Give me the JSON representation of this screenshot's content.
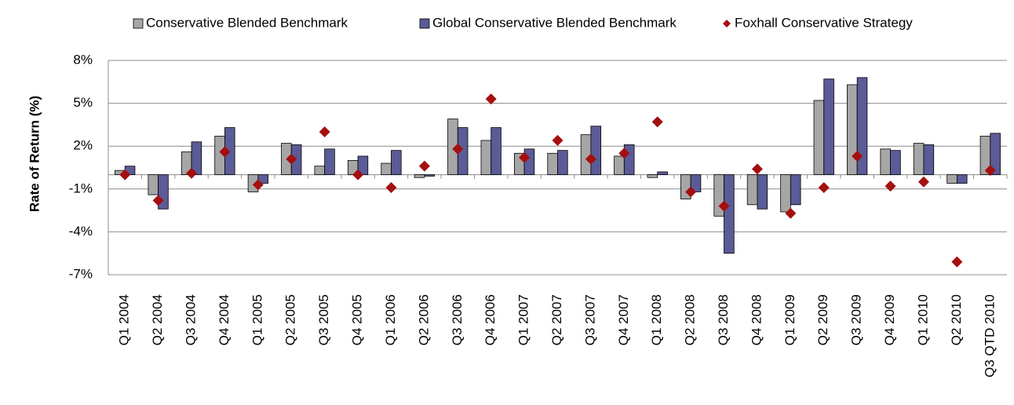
{
  "chart_data": {
    "type": "bar",
    "y_label": "Rate of Return (%)",
    "categories": [
      "Q1 2004",
      "Q2 2004",
      "Q3 2004",
      "Q4 2004",
      "Q1 2005",
      "Q2 2005",
      "Q3 2005",
      "Q4 2005",
      "Q1 2006",
      "Q2 2006",
      "Q3 2006",
      "Q4 2006",
      "Q1 2007",
      "Q2 2007",
      "Q3 2007",
      "Q4 2007",
      "Q1 2008",
      "Q2 2008",
      "Q3 2008",
      "Q4 2008",
      "Q1 2009",
      "Q2 2009",
      "Q3 2009",
      "Q4 2009",
      "Q1 2010",
      "Q2 2010",
      "Q3 QTD 2010"
    ],
    "series": [
      {
        "name": "Conservative Blended Benchmark",
        "color": "#a6a6a6",
        "mark": "bar",
        "values": [
          0.3,
          -1.4,
          1.6,
          2.7,
          -1.2,
          2.2,
          0.6,
          1.0,
          0.8,
          -0.2,
          3.9,
          2.4,
          1.5,
          1.5,
          2.8,
          1.3,
          -0.2,
          -1.7,
          -2.9,
          -2.1,
          -2.6,
          5.2,
          6.3,
          1.8,
          2.2,
          -0.6,
          2.7
        ]
      },
      {
        "name": "Global Conservative Blended Benchmark",
        "color": "#5b5b97",
        "mark": "bar",
        "values": [
          0.6,
          -2.4,
          2.3,
          3.3,
          -0.6,
          2.1,
          1.8,
          1.3,
          1.7,
          -0.1,
          3.3,
          3.3,
          1.8,
          1.7,
          3.4,
          2.1,
          0.2,
          -1.2,
          -5.5,
          -2.4,
          -2.1,
          6.7,
          6.8,
          1.7,
          2.1,
          -0.6,
          2.9
        ]
      },
      {
        "name": "Foxhall Conservative Strategy",
        "color": "#a50f0f",
        "mark": "diamond",
        "values": [
          0.0,
          -1.8,
          0.1,
          1.6,
          -0.7,
          1.1,
          3.0,
          0.0,
          -0.9,
          0.6,
          1.8,
          5.3,
          1.2,
          2.4,
          1.1,
          1.5,
          3.7,
          -1.2,
          -2.2,
          0.4,
          -2.7,
          -0.9,
          1.3,
          -0.8,
          -0.5,
          -6.1,
          0.3
        ]
      }
    ],
    "ylim": [
      -7,
      8
    ],
    "yticks": [
      {
        "value": 8,
        "label": "8%"
      },
      {
        "value": 5,
        "label": "5%"
      },
      {
        "value": 2,
        "label": "2%"
      },
      {
        "value": -1,
        "label": "-1%"
      },
      {
        "value": -4,
        "label": "-4%"
      },
      {
        "value": -7,
        "label": "-7%"
      }
    ],
    "grid": true,
    "legend": "top"
  }
}
